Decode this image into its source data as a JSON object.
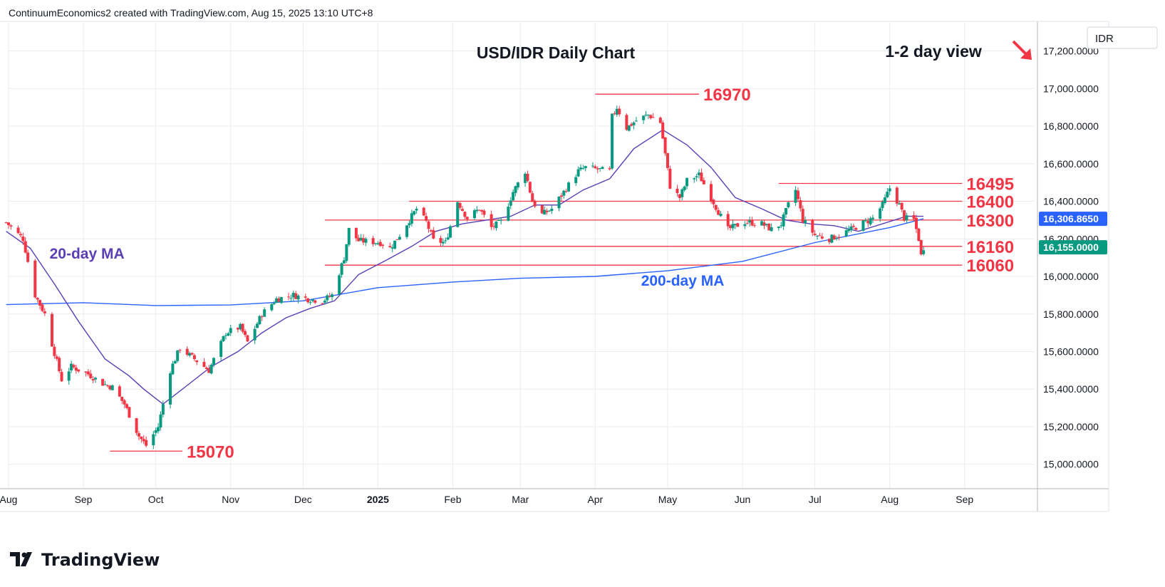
{
  "header": {
    "attribution": "ContinuumEconomics2 created with TradingView.com, Aug 15, 2025 13:10 UTC+8"
  },
  "brand": {
    "name": "TradingView",
    "icon": "tradingview-logo-icon"
  },
  "colors": {
    "bull": "#089981",
    "bear": "#f23645",
    "ma20": "#5b3fb5",
    "ma200": "#2962ff",
    "level": "#f23645",
    "grid": "#e9ecf1",
    "axis_text": "#131722"
  },
  "chart_data": {
    "type": "candlestick",
    "title": "USD/IDR Daily Chart",
    "subtitle": "1-2 day view",
    "view_icon": "down-right-arrow-icon",
    "currency_label": "IDR",
    "ylim": [
      14870,
      17350
    ],
    "y_ticks": [
      15000,
      15200,
      15400,
      15600,
      15800,
      16000,
      16200,
      16400,
      16600,
      16800,
      17000,
      17200
    ],
    "y_tick_labels": [
      "15,000.0000",
      "15,200.0000",
      "15,400.0000",
      "15,600.0000",
      "15,800.0000",
      "16,000.0000",
      "16,200.0000",
      "16,400.0000",
      "16,600.0000",
      "16,800.0000",
      "17,000.0000",
      "17,200.0000"
    ],
    "x_range": [
      "2024-08-01",
      "2025-09-30"
    ],
    "x_ticks": [
      {
        "date": "2024-08-01",
        "label": "Aug",
        "bold": false
      },
      {
        "date": "2024-09-01",
        "label": "Sep",
        "bold": false
      },
      {
        "date": "2024-10-01",
        "label": "Oct",
        "bold": false
      },
      {
        "date": "2024-11-01",
        "label": "Nov",
        "bold": false
      },
      {
        "date": "2024-12-01",
        "label": "Dec",
        "bold": false
      },
      {
        "date": "2025-01-01",
        "label": "2025",
        "bold": true
      },
      {
        "date": "2025-02-01",
        "label": "Feb",
        "bold": false
      },
      {
        "date": "2025-03-01",
        "label": "Mar",
        "bold": false
      },
      {
        "date": "2025-04-01",
        "label": "Apr",
        "bold": false
      },
      {
        "date": "2025-05-01",
        "label": "May",
        "bold": false
      },
      {
        "date": "2025-06-01",
        "label": "Jun",
        "bold": false
      },
      {
        "date": "2025-07-01",
        "label": "Jul",
        "bold": false
      },
      {
        "date": "2025-08-01",
        "label": "Aug",
        "bold": false
      },
      {
        "date": "2025-09-01",
        "label": "Sep",
        "bold": false
      }
    ],
    "price_path": [
      [
        "2024-07-30",
        16300
      ],
      [
        "2024-08-07",
        16200
      ],
      [
        "2024-08-12",
        15900
      ],
      [
        "2024-08-16",
        15800
      ],
      [
        "2024-08-19",
        15640
      ],
      [
        "2024-08-23",
        15450
      ],
      [
        "2024-08-27",
        15520
      ],
      [
        "2024-09-03",
        15480
      ],
      [
        "2024-09-09",
        15430
      ],
      [
        "2024-09-13",
        15410
      ],
      [
        "2024-09-18",
        15320
      ],
      [
        "2024-09-24",
        15150
      ],
      [
        "2024-09-27",
        15100
      ],
      [
        "2024-10-02",
        15200
      ],
      [
        "2024-10-07",
        15500
      ],
      [
        "2024-10-11",
        15620
      ],
      [
        "2024-10-17",
        15560
      ],
      [
        "2024-10-23",
        15500
      ],
      [
        "2024-10-30",
        15700
      ],
      [
        "2024-11-05",
        15730
      ],
      [
        "2024-11-08",
        15650
      ],
      [
        "2024-11-14",
        15800
      ],
      [
        "2024-11-20",
        15880
      ],
      [
        "2024-11-27",
        15900
      ],
      [
        "2024-12-03",
        15880
      ],
      [
        "2024-12-09",
        15870
      ],
      [
        "2024-12-13",
        15900
      ],
      [
        "2024-12-18",
        16100
      ],
      [
        "2024-12-20",
        16250
      ],
      [
        "2024-12-24",
        16190
      ],
      [
        "2025-01-02",
        16180
      ],
      [
        "2025-01-06",
        16150
      ],
      [
        "2025-01-10",
        16220
      ],
      [
        "2025-01-14",
        16300
      ],
      [
        "2025-01-17",
        16360
      ],
      [
        "2025-01-21",
        16290
      ],
      [
        "2025-01-24",
        16190
      ],
      [
        "2025-01-29",
        16180
      ],
      [
        "2025-02-03",
        16400
      ],
      [
        "2025-02-07",
        16310
      ],
      [
        "2025-02-12",
        16360
      ],
      [
        "2025-02-17",
        16260
      ],
      [
        "2025-02-21",
        16290
      ],
      [
        "2025-02-26",
        16450
      ],
      [
        "2025-03-03",
        16560
      ],
      [
        "2025-03-06",
        16400
      ],
      [
        "2025-03-10",
        16330
      ],
      [
        "2025-03-14",
        16360
      ],
      [
        "2025-03-19",
        16450
      ],
      [
        "2025-03-25",
        16560
      ],
      [
        "2025-03-28",
        16580
      ],
      [
        "2025-04-07",
        16560
      ],
      [
        "2025-04-08",
        16850
      ],
      [
        "2025-04-10",
        16900
      ],
      [
        "2025-04-14",
        16790
      ],
      [
        "2025-04-18",
        16830
      ],
      [
        "2025-04-23",
        16860
      ],
      [
        "2025-04-28",
        16820
      ],
      [
        "2025-04-30",
        16650
      ],
      [
        "2025-05-02",
        16480
      ],
      [
        "2025-05-06",
        16420
      ],
      [
        "2025-05-09",
        16510
      ],
      [
        "2025-05-14",
        16540
      ],
      [
        "2025-05-19",
        16420
      ],
      [
        "2025-05-23",
        16320
      ],
      [
        "2025-05-26",
        16250
      ],
      [
        "2025-06-02",
        16290
      ],
      [
        "2025-06-09",
        16280
      ],
      [
        "2025-06-13",
        16250
      ],
      [
        "2025-06-17",
        16280
      ],
      [
        "2025-06-20",
        16380
      ],
      [
        "2025-06-23",
        16460
      ],
      [
        "2025-06-26",
        16300
      ],
      [
        "2025-07-01",
        16220
      ],
      [
        "2025-07-07",
        16200
      ],
      [
        "2025-07-11",
        16220
      ],
      [
        "2025-07-16",
        16250
      ],
      [
        "2025-07-22",
        16290
      ],
      [
        "2025-07-25",
        16310
      ],
      [
        "2025-07-29",
        16380
      ],
      [
        "2025-07-31",
        16440
      ],
      [
        "2025-08-01",
        16470
      ],
      [
        "2025-08-05",
        16380
      ],
      [
        "2025-08-07",
        16310
      ],
      [
        "2025-08-11",
        16300
      ],
      [
        "2025-08-13",
        16200
      ],
      [
        "2025-08-14",
        16110
      ],
      [
        "2025-08-15",
        16155
      ]
    ],
    "ma20_path": [
      [
        "2024-07-31",
        16240
      ],
      [
        "2024-08-10",
        16150
      ],
      [
        "2024-08-20",
        15960
      ],
      [
        "2024-08-30",
        15760
      ],
      [
        "2024-09-10",
        15560
      ],
      [
        "2024-09-20",
        15470
      ],
      [
        "2024-09-26",
        15400
      ],
      [
        "2024-10-01",
        15350
      ],
      [
        "2024-10-04",
        15320
      ],
      [
        "2024-10-14",
        15420
      ],
      [
        "2024-10-24",
        15520
      ],
      [
        "2024-11-04",
        15600
      ],
      [
        "2024-11-14",
        15700
      ],
      [
        "2024-11-24",
        15780
      ],
      [
        "2024-12-04",
        15830
      ],
      [
        "2024-12-14",
        15870
      ],
      [
        "2024-12-24",
        16010
      ],
      [
        "2025-01-05",
        16090
      ],
      [
        "2025-01-15",
        16160
      ],
      [
        "2025-01-25",
        16240
      ],
      [
        "2025-02-05",
        16280
      ],
      [
        "2025-02-15",
        16300
      ],
      [
        "2025-02-25",
        16320
      ],
      [
        "2025-03-07",
        16380
      ],
      [
        "2025-03-17",
        16380
      ],
      [
        "2025-03-27",
        16460
      ],
      [
        "2025-04-07",
        16520
      ],
      [
        "2025-04-17",
        16680
      ],
      [
        "2025-04-29",
        16780
      ],
      [
        "2025-05-09",
        16700
      ],
      [
        "2025-05-19",
        16580
      ],
      [
        "2025-05-29",
        16420
      ],
      [
        "2025-06-09",
        16360
      ],
      [
        "2025-06-19",
        16300
      ],
      [
        "2025-06-29",
        16280
      ],
      [
        "2025-07-09",
        16270
      ],
      [
        "2025-07-19",
        16240
      ],
      [
        "2025-07-29",
        16280
      ],
      [
        "2025-08-08",
        16320
      ],
      [
        "2025-08-15",
        16320
      ]
    ],
    "ma200_path": [
      [
        "2024-07-31",
        15850
      ],
      [
        "2024-09-01",
        15860
      ],
      [
        "2024-10-01",
        15845
      ],
      [
        "2024-11-01",
        15848
      ],
      [
        "2024-12-01",
        15870
      ],
      [
        "2025-01-01",
        15940
      ],
      [
        "2025-02-01",
        15970
      ],
      [
        "2025-03-01",
        15990
      ],
      [
        "2025-04-01",
        16000
      ],
      [
        "2025-05-01",
        16030
      ],
      [
        "2025-06-01",
        16080
      ],
      [
        "2025-07-01",
        16180
      ],
      [
        "2025-08-01",
        16260
      ],
      [
        "2025-08-15",
        16306.865
      ]
    ],
    "levels": [
      {
        "value": 16970,
        "label": "16970",
        "start": "2025-04-01",
        "end": "2025-05-14"
      },
      {
        "value": 16495,
        "label": "16495",
        "start": "2025-06-16",
        "end": "2025-08-31"
      },
      {
        "value": 16400,
        "label": "16400",
        "start": "2025-01-14",
        "end": "2025-08-31"
      },
      {
        "value": 16300,
        "label": "16300",
        "start": "2024-12-10",
        "end": "2025-08-31"
      },
      {
        "value": 16160,
        "label": "16160",
        "start": "2025-01-18",
        "end": "2025-08-31"
      },
      {
        "value": 16060,
        "label": "16060",
        "start": "2024-12-10",
        "end": "2025-08-31"
      },
      {
        "value": 15070,
        "label": "15070",
        "start": "2024-09-12",
        "end": "2024-10-12"
      }
    ],
    "annotations": [
      {
        "text": "20-day MA",
        "date": "2024-08-18",
        "value": 16095,
        "color": "#5b3fb5"
      },
      {
        "text": "200-day MA",
        "date": "2025-04-20",
        "value": 15950,
        "color": "#2962ff"
      }
    ],
    "price_badges": [
      {
        "value": 16306.865,
        "label": "16,306.8650",
        "color": "#2962ff"
      },
      {
        "value": 16155,
        "label": "16,155.0000",
        "color": "#089981"
      }
    ],
    "grid": true
  }
}
